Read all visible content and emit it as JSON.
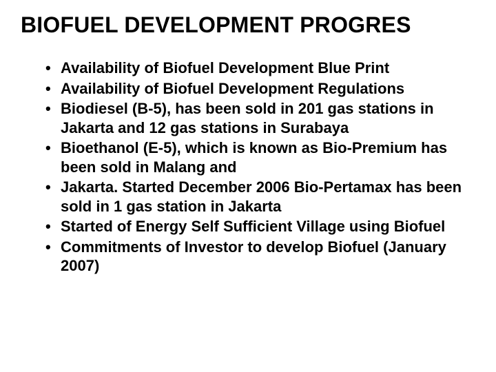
{
  "title": "BIOFUEL DEVELOPMENT PROGRES",
  "bullets": [
    "Availability of Biofuel Development Blue Print",
    "Availability of Biofuel Development Regulations",
    "Biodiesel (B-5), has been sold in 201 gas stations in Jakarta and 12 gas stations in Surabaya",
    "Bioethanol (E-5), which is known as Bio-Premium has been sold in Malang and",
    "Jakarta. Started December 2006 Bio-Pertamax has been sold in 1 gas station in Jakarta",
    "Started of Energy Self Sufficient Village using Biofuel",
    "Commitments of Investor to develop Biofuel (January 2007)"
  ],
  "style": {
    "background_color": "#ffffff",
    "text_color": "#000000",
    "font_family": "Arial",
    "title_fontsize": 32,
    "title_fontweight": "bold",
    "bullet_fontsize": 22,
    "bullet_fontweight": "bold",
    "slide_width": 720,
    "slide_height": 540
  }
}
